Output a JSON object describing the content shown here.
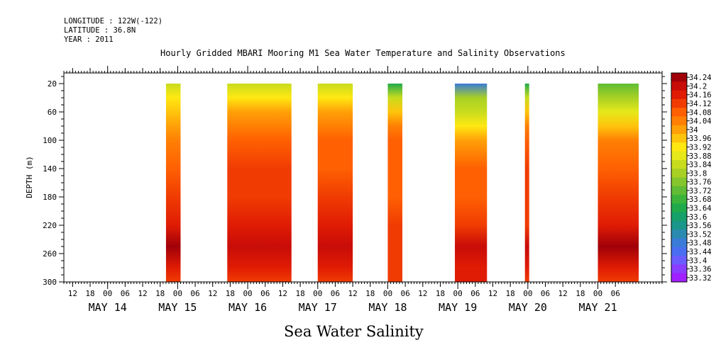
{
  "header": {
    "longitude": "LONGITUDE : 122W(-122)",
    "latitude": "LATITUDE : 36.8N",
    "year": "YEAR : 2011",
    "title": "Hourly Gridded MBARI Mooring M1 Sea Water Temperature and Salinity Observations"
  },
  "footer": {
    "label": "Sea Water Salinity"
  },
  "chart_data": {
    "type": "heatmap",
    "title": "Hourly Gridded MBARI Mooring M1 Sea Water Temperature and Salinity Observations",
    "xlabel": "",
    "ylabel": "DEPTH (m)",
    "colorbar_label": "Sea Water Salinity",
    "ylim": [
      300,
      5
    ],
    "y_inverted": true,
    "xlim_hours_from_may14_00": [
      -15,
      190
    ],
    "y_ticks": [
      20,
      60,
      100,
      140,
      180,
      220,
      260,
      300
    ],
    "x_hour_ticks": [
      "12",
      "18",
      "00",
      "06",
      "12",
      "18",
      "00",
      "06",
      "12",
      "18",
      "00",
      "06",
      "12",
      "18",
      "00",
      "06",
      "12",
      "18",
      "00",
      "06",
      "12",
      "18",
      "00",
      "06",
      "12",
      "18",
      "00",
      "06",
      "12",
      "18",
      "00",
      "06"
    ],
    "x_day_labels": [
      "MAY 14",
      "MAY 15",
      "MAY 16",
      "MAY 17",
      "MAY 18",
      "MAY 19",
      "MAY 20",
      "MAY 21"
    ],
    "colorbar_levels": [
      33.32,
      33.36,
      33.4,
      33.44,
      33.48,
      33.52,
      33.56,
      33.6,
      33.64,
      33.68,
      33.72,
      33.76,
      33.8,
      33.84,
      33.88,
      33.92,
      33.96,
      34,
      34.04,
      34.08,
      34.12,
      34.16,
      34.2,
      34.24
    ],
    "colorbar_colors": [
      "#a020ff",
      "#8a3cff",
      "#6b5cff",
      "#4a6ef0",
      "#3a7cd8",
      "#2a8ab0",
      "#1a968a",
      "#16a06a",
      "#20aa4c",
      "#3cb43c",
      "#60bc34",
      "#84c62c",
      "#a8d024",
      "#c8dc1e",
      "#e6e81a",
      "#ffe812",
      "#ffc40c",
      "#ffa008",
      "#ff8004",
      "#ff6002",
      "#f03c02",
      "#e01c04",
      "#c80c08",
      "#a00008"
    ],
    "segments": [
      {
        "day": "MAY 14",
        "x_start_hours": 20,
        "x_end_hours": 25,
        "profile": [
          [
            20,
            33.84
          ],
          [
            40,
            33.9
          ],
          [
            60,
            33.96
          ],
          [
            80,
            34.0
          ],
          [
            100,
            34.04
          ],
          [
            140,
            34.08
          ],
          [
            180,
            34.1
          ],
          [
            220,
            34.14
          ],
          [
            250,
            34.22
          ],
          [
            280,
            34.16
          ],
          [
            300,
            34.12
          ]
        ]
      },
      {
        "day": "MAY 15",
        "x_start_hours": 41,
        "x_end_hours": 63,
        "profile": [
          [
            20,
            33.84
          ],
          [
            40,
            33.9
          ],
          [
            60,
            34.0
          ],
          [
            80,
            34.04
          ],
          [
            100,
            34.06
          ],
          [
            140,
            34.09
          ],
          [
            180,
            34.1
          ],
          [
            220,
            34.13
          ],
          [
            250,
            34.2
          ],
          [
            280,
            34.14
          ],
          [
            300,
            34.12
          ]
        ]
      },
      {
        "day": "MAY 16",
        "x_start_hours": 72,
        "x_end_hours": 84,
        "profile": [
          [
            20,
            33.84
          ],
          [
            40,
            33.92
          ],
          [
            60,
            34.0
          ],
          [
            80,
            34.04
          ],
          [
            100,
            34.06
          ],
          [
            140,
            34.08
          ],
          [
            180,
            34.1
          ],
          [
            220,
            34.14
          ],
          [
            250,
            34.2
          ],
          [
            280,
            34.15
          ],
          [
            300,
            34.12
          ]
        ]
      },
      {
        "day": "MAY 17",
        "x_start_hours": 96,
        "x_end_hours": 101,
        "profile": [
          [
            20,
            33.62
          ],
          [
            40,
            33.82
          ],
          [
            60,
            33.96
          ],
          [
            80,
            34.04
          ],
          [
            100,
            34.06
          ],
          [
            140,
            34.08
          ],
          [
            180,
            34.08
          ],
          [
            220,
            34.1
          ],
          [
            250,
            34.12
          ],
          [
            280,
            34.1
          ],
          [
            300,
            34.1
          ]
        ]
      },
      {
        "day": "MAY 18",
        "x_start_hours": 119,
        "x_end_hours": 130,
        "profile": [
          [
            20,
            33.48
          ],
          [
            40,
            33.78
          ],
          [
            60,
            33.84
          ],
          [
            80,
            33.92
          ],
          [
            100,
            34.0
          ],
          [
            140,
            34.06
          ],
          [
            180,
            34.08
          ],
          [
            220,
            34.12
          ],
          [
            250,
            34.2
          ],
          [
            280,
            34.16
          ],
          [
            300,
            34.14
          ]
        ]
      },
      {
        "day": "MAY 19",
        "x_start_hours": 143,
        "x_end_hours": 144,
        "profile": [
          [
            20,
            33.62
          ],
          [
            40,
            33.82
          ],
          [
            60,
            33.96
          ],
          [
            80,
            34.04
          ],
          [
            100,
            34.08
          ],
          [
            140,
            34.1
          ],
          [
            180,
            34.1
          ],
          [
            220,
            34.12
          ],
          [
            250,
            34.2
          ],
          [
            280,
            34.14
          ],
          [
            300,
            34.12
          ]
        ]
      },
      {
        "day": "MAY 21",
        "x_start_hours": 168,
        "x_end_hours": 182,
        "profile": [
          [
            20,
            33.72
          ],
          [
            40,
            33.8
          ],
          [
            60,
            33.88
          ],
          [
            80,
            33.96
          ],
          [
            100,
            34.02
          ],
          [
            140,
            34.06
          ],
          [
            180,
            34.1
          ],
          [
            220,
            34.14
          ],
          [
            250,
            34.22
          ],
          [
            280,
            34.16
          ],
          [
            300,
            34.12
          ]
        ]
      }
    ]
  }
}
